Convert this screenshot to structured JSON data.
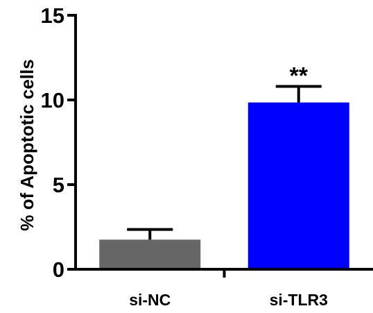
{
  "chart_data": {
    "type": "bar",
    "categories": [
      "si-NC",
      "si-TLR3"
    ],
    "values": [
      1.75,
      9.85
    ],
    "errors": [
      0.6,
      0.95
    ],
    "colors": [
      "#666666",
      "#0000ff"
    ],
    "ylabel": "% of Apoptotic cells",
    "xlabel": "",
    "ylim": [
      0,
      15
    ],
    "yticks": [
      "0",
      "5",
      "10",
      "15"
    ],
    "annotations": [
      {
        "category": "si-TLR3",
        "text": "**"
      }
    ],
    "grid": false,
    "legend": "none"
  }
}
